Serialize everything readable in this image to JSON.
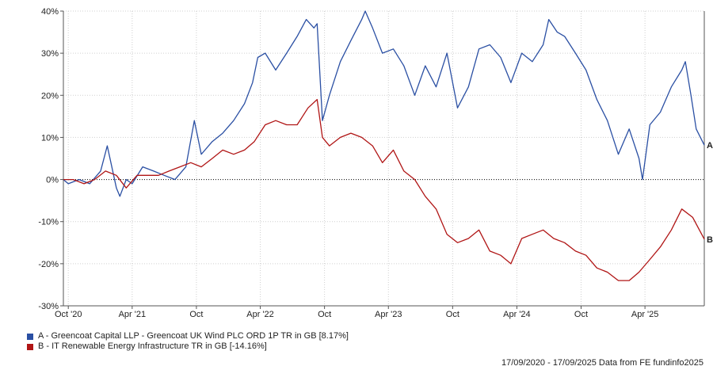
{
  "chart_data": {
    "type": "line",
    "title": "",
    "xlabel": "",
    "ylabel": "",
    "ylim": [
      -30,
      40
    ],
    "yticks": [
      40,
      30,
      20,
      10,
      0,
      -10,
      -20,
      -30
    ],
    "ytick_labels": [
      "40%",
      "30%",
      "20%",
      "10%",
      "0%",
      "-10%",
      "-20%",
      "-30%"
    ],
    "xtick_labels": [
      "Oct '20",
      "Apr '21",
      "Oct",
      "Apr '22",
      "Oct",
      "Apr '23",
      "Oct",
      "Apr '24",
      "Oct",
      "Apr '25"
    ],
    "xticks": [
      "2020-10-01",
      "2021-04-01",
      "2021-10-01",
      "2022-04-01",
      "2022-10-01",
      "2023-04-01",
      "2023-10-01",
      "2024-04-01",
      "2024-10-01",
      "2025-04-01"
    ],
    "x_range": [
      "2020-09-17",
      "2025-09-17"
    ],
    "grid": true,
    "series": [
      {
        "name": "A - Greencoat Capital LLP - Greencoat UK Wind PLC ORD 1P TR in GB [8.17%]",
        "end_label": "A",
        "color": "#2a4fa3",
        "points": [
          [
            "2020-09-17",
            0
          ],
          [
            "2020-10-01",
            -1
          ],
          [
            "2020-11-01",
            0
          ],
          [
            "2020-12-01",
            -1
          ],
          [
            "2021-01-01",
            2
          ],
          [
            "2021-01-20",
            8
          ],
          [
            "2021-02-15",
            -2
          ],
          [
            "2021-02-25",
            -4
          ],
          [
            "2021-03-15",
            0
          ],
          [
            "2021-04-01",
            -1
          ],
          [
            "2021-05-01",
            3
          ],
          [
            "2021-06-01",
            2
          ],
          [
            "2021-07-01",
            1
          ],
          [
            "2021-08-01",
            0
          ],
          [
            "2021-09-01",
            3
          ],
          [
            "2021-09-25",
            14
          ],
          [
            "2021-10-15",
            6
          ],
          [
            "2021-11-15",
            9
          ],
          [
            "2021-12-15",
            11
          ],
          [
            "2022-01-15",
            14
          ],
          [
            "2022-02-15",
            18
          ],
          [
            "2022-03-10",
            23
          ],
          [
            "2022-03-25",
            29
          ],
          [
            "2022-04-15",
            30
          ],
          [
            "2022-05-15",
            26
          ],
          [
            "2022-06-15",
            30
          ],
          [
            "2022-07-15",
            34
          ],
          [
            "2022-08-10",
            38
          ],
          [
            "2022-09-01",
            36
          ],
          [
            "2022-09-10",
            37
          ],
          [
            "2022-09-25",
            14
          ],
          [
            "2022-10-15",
            20
          ],
          [
            "2022-11-15",
            28
          ],
          [
            "2022-12-15",
            33
          ],
          [
            "2023-01-15",
            38
          ],
          [
            "2023-01-25",
            40
          ],
          [
            "2023-02-15",
            36
          ],
          [
            "2023-03-15",
            30
          ],
          [
            "2023-04-15",
            31
          ],
          [
            "2023-05-15",
            27
          ],
          [
            "2023-06-15",
            20
          ],
          [
            "2023-07-15",
            27
          ],
          [
            "2023-08-15",
            22
          ],
          [
            "2023-09-15",
            30
          ],
          [
            "2023-10-15",
            17
          ],
          [
            "2023-11-15",
            22
          ],
          [
            "2023-12-15",
            31
          ],
          [
            "2024-01-15",
            32
          ],
          [
            "2024-02-15",
            29
          ],
          [
            "2024-03-15",
            23
          ],
          [
            "2024-04-15",
            30
          ],
          [
            "2024-05-15",
            28
          ],
          [
            "2024-06-15",
            32
          ],
          [
            "2024-07-01",
            38
          ],
          [
            "2024-07-25",
            35
          ],
          [
            "2024-08-15",
            34
          ],
          [
            "2024-09-15",
            30
          ],
          [
            "2024-10-15",
            26
          ],
          [
            "2024-11-15",
            19
          ],
          [
            "2024-12-15",
            14
          ],
          [
            "2025-01-15",
            6
          ],
          [
            "2025-02-15",
            12
          ],
          [
            "2025-03-15",
            5
          ],
          [
            "2025-03-25",
            0
          ],
          [
            "2025-04-15",
            13
          ],
          [
            "2025-05-15",
            16
          ],
          [
            "2025-06-15",
            22
          ],
          [
            "2025-07-15",
            26
          ],
          [
            "2025-07-25",
            28
          ],
          [
            "2025-08-10",
            20
          ],
          [
            "2025-08-25",
            12
          ],
          [
            "2025-09-17",
            8.17
          ]
        ]
      },
      {
        "name": "B - IT Renewable Energy Infrastructure TR in GB [-14.16%]",
        "end_label": "B",
        "color": "#b01515",
        "points": [
          [
            "2020-09-17",
            0
          ],
          [
            "2020-10-15",
            0
          ],
          [
            "2020-11-15",
            -1
          ],
          [
            "2020-12-15",
            0
          ],
          [
            "2021-01-15",
            2
          ],
          [
            "2021-02-15",
            1
          ],
          [
            "2021-03-15",
            -2
          ],
          [
            "2021-04-15",
            1
          ],
          [
            "2021-05-15",
            1
          ],
          [
            "2021-06-15",
            1
          ],
          [
            "2021-07-15",
            2
          ],
          [
            "2021-08-15",
            3
          ],
          [
            "2021-09-15",
            4
          ],
          [
            "2021-10-15",
            3
          ],
          [
            "2021-11-15",
            5
          ],
          [
            "2021-12-15",
            7
          ],
          [
            "2022-01-15",
            6
          ],
          [
            "2022-02-15",
            7
          ],
          [
            "2022-03-15",
            9
          ],
          [
            "2022-04-15",
            13
          ],
          [
            "2022-05-15",
            14
          ],
          [
            "2022-06-15",
            13
          ],
          [
            "2022-07-15",
            13
          ],
          [
            "2022-08-15",
            17
          ],
          [
            "2022-09-10",
            19
          ],
          [
            "2022-09-25",
            10
          ],
          [
            "2022-10-15",
            8
          ],
          [
            "2022-11-15",
            10
          ],
          [
            "2022-12-15",
            11
          ],
          [
            "2023-01-15",
            10
          ],
          [
            "2023-02-15",
            8
          ],
          [
            "2023-03-15",
            4
          ],
          [
            "2023-04-15",
            7
          ],
          [
            "2023-05-15",
            2
          ],
          [
            "2023-06-15",
            0
          ],
          [
            "2023-07-15",
            -4
          ],
          [
            "2023-08-15",
            -7
          ],
          [
            "2023-09-15",
            -13
          ],
          [
            "2023-10-15",
            -15
          ],
          [
            "2023-11-15",
            -14
          ],
          [
            "2023-12-15",
            -12
          ],
          [
            "2024-01-15",
            -17
          ],
          [
            "2024-02-15",
            -18
          ],
          [
            "2024-03-15",
            -20
          ],
          [
            "2024-04-15",
            -14
          ],
          [
            "2024-05-15",
            -13
          ],
          [
            "2024-06-15",
            -12
          ],
          [
            "2024-07-15",
            -14
          ],
          [
            "2024-08-15",
            -15
          ],
          [
            "2024-09-15",
            -17
          ],
          [
            "2024-10-15",
            -18
          ],
          [
            "2024-11-15",
            -21
          ],
          [
            "2024-12-15",
            -22
          ],
          [
            "2025-01-15",
            -24
          ],
          [
            "2025-02-15",
            -24
          ],
          [
            "2025-03-15",
            -22
          ],
          [
            "2025-04-15",
            -19
          ],
          [
            "2025-05-15",
            -16
          ],
          [
            "2025-06-15",
            -12
          ],
          [
            "2025-07-15",
            -7
          ],
          [
            "2025-08-15",
            -9
          ],
          [
            "2025-09-17",
            -14.16
          ]
        ]
      }
    ]
  },
  "footer": "17/09/2020 - 17/09/2025 Data from FE fundinfo2025"
}
